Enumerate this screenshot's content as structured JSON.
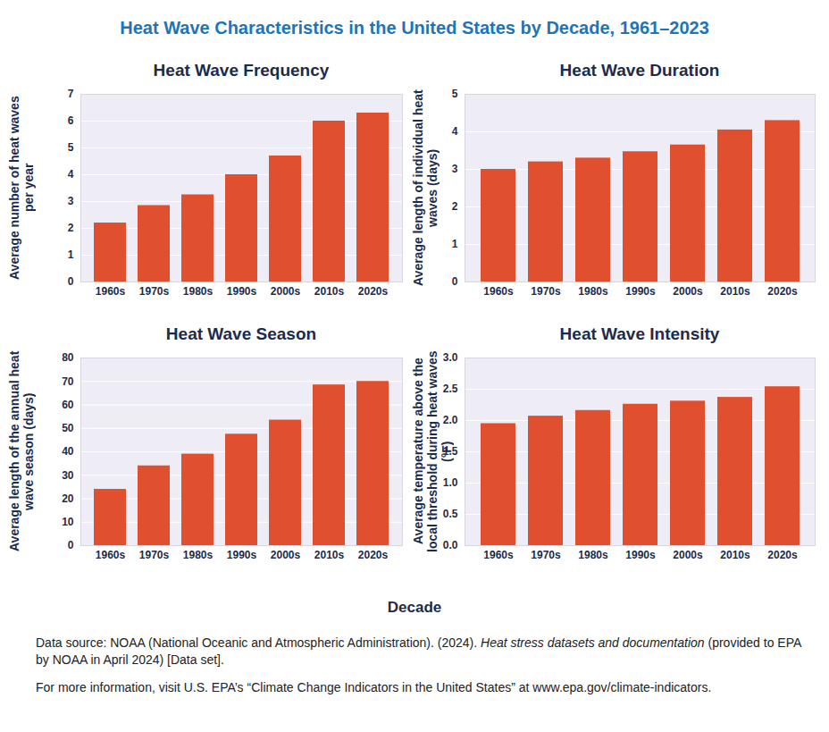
{
  "figure": {
    "title": "Heat Wave Characteristics in the United States by Decade, 1961–2023",
    "xlabel": "Decade",
    "source": [
      "Data source: NOAA (National Oceanic and Atmospheric Administration). (2024). ",
      "Heat stress datasets and documentation",
      " (provided to EPA by NOAA in April 2024) [Data set]."
    ],
    "note": "For more information, visit U.S. EPA’s “Climate Change Indicators in the United States” at www.epa.gov/climate-indicators."
  },
  "chart_data": [
    {
      "type": "bar",
      "title": "Heat Wave Frequency",
      "ylabel": "Average number of heat waves per year",
      "categories": [
        "1960s",
        "1970s",
        "1980s",
        "1990s",
        "2000s",
        "2010s",
        "2020s"
      ],
      "values": [
        2.2,
        2.85,
        3.25,
        4.0,
        4.7,
        6.0,
        6.3
      ],
      "color": "#e0502f",
      "ylim": [
        0,
        7
      ],
      "yticks": [
        0,
        1,
        2,
        3,
        4,
        5,
        6,
        7
      ],
      "grid": true
    },
    {
      "type": "bar",
      "title": "Heat Wave Duration",
      "ylabel": "Average length of individual heat waves (days)",
      "categories": [
        "1960s",
        "1970s",
        "1980s",
        "1990s",
        "2000s",
        "2010s",
        "2020s"
      ],
      "values": [
        3.0,
        3.2,
        3.3,
        3.47,
        3.65,
        4.05,
        4.3
      ],
      "color": "#e0502f",
      "ylim": [
        0,
        5
      ],
      "yticks": [
        0,
        1,
        2,
        3,
        4,
        5
      ],
      "grid": true
    },
    {
      "type": "bar",
      "title": "Heat Wave Season",
      "ylabel": "Average length of the annual heat wave season (days)",
      "categories": [
        "1960s",
        "1970s",
        "1980s",
        "1990s",
        "2000s",
        "2010s",
        "2020s"
      ],
      "values": [
        24,
        34,
        39,
        47.5,
        53.5,
        68.5,
        70
      ],
      "color": "#e0502f",
      "ylim": [
        0,
        80
      ],
      "yticks": [
        0,
        10,
        20,
        30,
        40,
        50,
        60,
        70,
        80
      ],
      "grid": true
    },
    {
      "type": "bar",
      "title": "Heat Wave Intensity",
      "ylabel": "Average temperature above the local threshold during heat waves (°F)",
      "categories": [
        "1960s",
        "1970s",
        "1980s",
        "1990s",
        "2000s",
        "2010s",
        "2020s"
      ],
      "values": [
        1.95,
        2.07,
        2.16,
        2.26,
        2.31,
        2.37,
        2.54
      ],
      "color": "#e0502f",
      "ylim": [
        0,
        3
      ],
      "yticks": [
        {
          "value": 0,
          "label": "0.0"
        },
        0.5,
        {
          "value": 1,
          "label": "1.0"
        },
        1.5,
        {
          "value": 2,
          "label": "2.0"
        },
        2.5,
        {
          "value": 3,
          "label": "3.0"
        }
      ],
      "grid": true
    }
  ]
}
